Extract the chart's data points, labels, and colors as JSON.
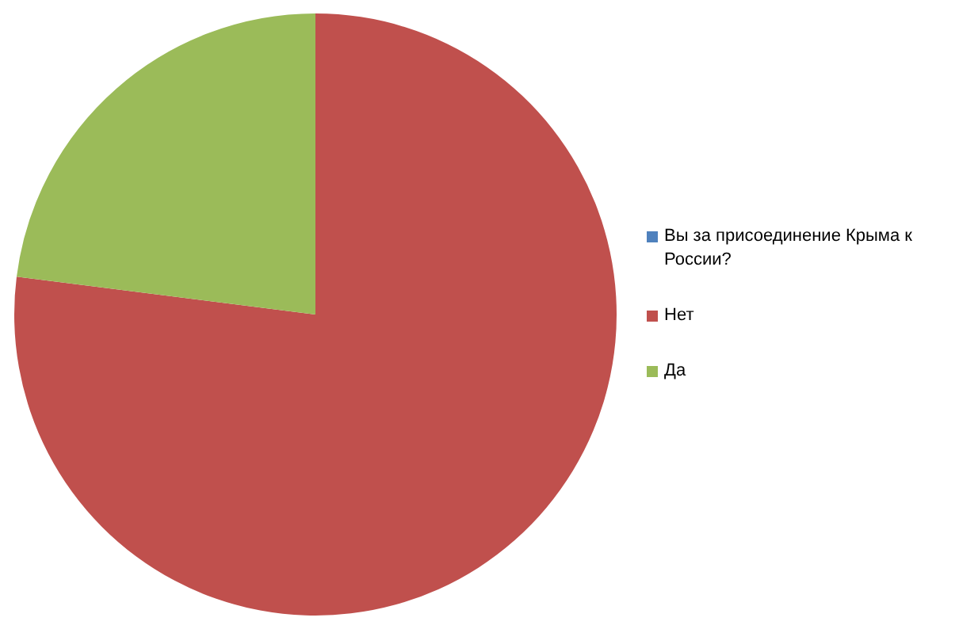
{
  "chart_data": {
    "type": "pie",
    "categories": [
      "Вы за присоединение Крыма к России?",
      "Нет",
      "Да"
    ],
    "values": [
      0,
      77,
      23
    ],
    "colors": [
      "#4f81bd",
      "#c0504d",
      "#9bbb59"
    ],
    "legend": "right"
  }
}
